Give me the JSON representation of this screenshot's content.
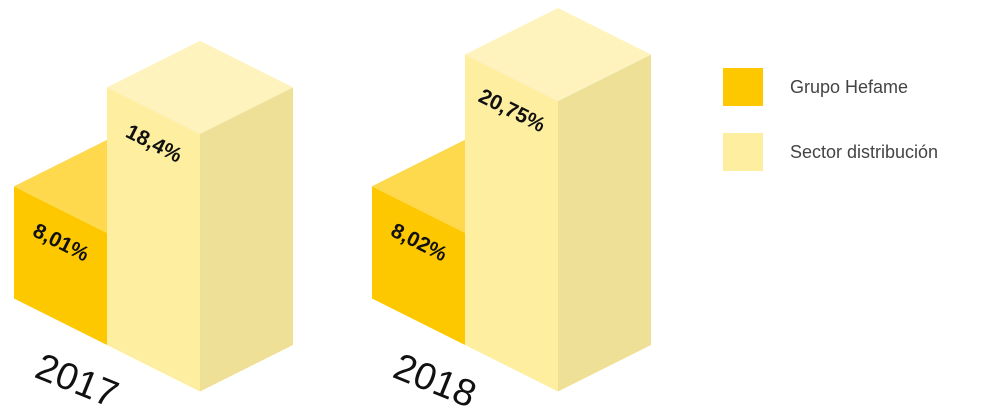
{
  "chart_data": {
    "type": "bar3d",
    "categories": [
      "2017",
      "2018"
    ],
    "series": [
      {
        "name": "Grupo Hefame",
        "color": "#fdc800",
        "values": [
          8.01,
          8.02
        ],
        "value_labels": [
          "8,01%",
          "8,02%"
        ]
      },
      {
        "name": "Sector distribución",
        "color": "#fdeea0",
        "values": [
          18.4,
          20.75
        ],
        "value_labels": [
          "18,4%",
          "20,75%"
        ]
      }
    ],
    "legend": "right"
  }
}
